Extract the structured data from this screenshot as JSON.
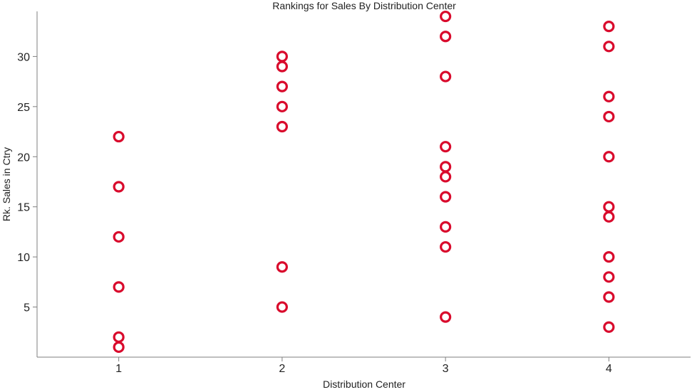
{
  "chart_data": {
    "type": "scatter",
    "title": "Rankings for Sales By Distribution Center",
    "xlabel": "Distribution Center",
    "ylabel": "Rk. Sales in Ctry",
    "xlim": [
      0.5,
      4.5
    ],
    "ylim": [
      0,
      34.5
    ],
    "xticks": [
      "1",
      "2",
      "3",
      "4"
    ],
    "yticks": [
      "5",
      "10",
      "15",
      "20",
      "25",
      "30"
    ],
    "grid": false,
    "marker": "open-circle",
    "marker_color": "#d90a2c",
    "points": [
      {
        "x": 1,
        "y": 1
      },
      {
        "x": 1,
        "y": 2
      },
      {
        "x": 1,
        "y": 7
      },
      {
        "x": 1,
        "y": 12
      },
      {
        "x": 1,
        "y": 17
      },
      {
        "x": 1,
        "y": 22
      },
      {
        "x": 2,
        "y": 5
      },
      {
        "x": 2,
        "y": 9
      },
      {
        "x": 2,
        "y": 23
      },
      {
        "x": 2,
        "y": 25
      },
      {
        "x": 2,
        "y": 27
      },
      {
        "x": 2,
        "y": 29
      },
      {
        "x": 2,
        "y": 30
      },
      {
        "x": 3,
        "y": 4
      },
      {
        "x": 3,
        "y": 11
      },
      {
        "x": 3,
        "y": 13
      },
      {
        "x": 3,
        "y": 16
      },
      {
        "x": 3,
        "y": 18
      },
      {
        "x": 3,
        "y": 19
      },
      {
        "x": 3,
        "y": 21
      },
      {
        "x": 3,
        "y": 28
      },
      {
        "x": 3,
        "y": 32
      },
      {
        "x": 3,
        "y": 34
      },
      {
        "x": 4,
        "y": 3
      },
      {
        "x": 4,
        "y": 6
      },
      {
        "x": 4,
        "y": 8
      },
      {
        "x": 4,
        "y": 10
      },
      {
        "x": 4,
        "y": 14
      },
      {
        "x": 4,
        "y": 15
      },
      {
        "x": 4,
        "y": 20
      },
      {
        "x": 4,
        "y": 24
      },
      {
        "x": 4,
        "y": 26
      },
      {
        "x": 4,
        "y": 31
      },
      {
        "x": 4,
        "y": 33
      }
    ]
  }
}
